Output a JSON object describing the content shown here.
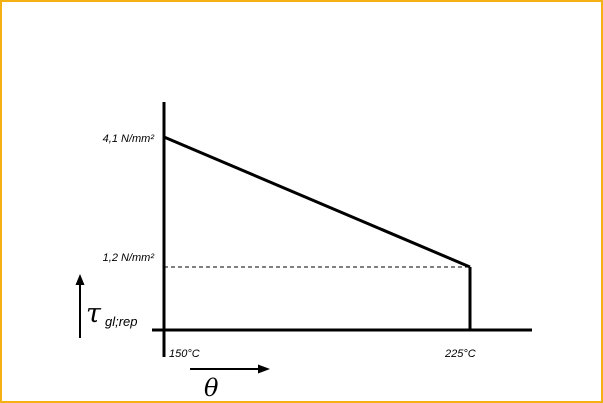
{
  "chart_data": {
    "type": "line",
    "x": [
      150,
      225
    ],
    "x_unit": "°C",
    "series": [
      {
        "values": [
          4.1,
          1.2
        ]
      }
    ],
    "y_unit": "N/mm²",
    "xlim": [
      150,
      225
    ],
    "ylim": [
      1.2,
      4.1
    ],
    "x_tick_labels": [
      "150°C",
      "225°C"
    ],
    "y_tick_labels": [
      "4,1 N/mm²",
      "1,2 N/mm²"
    ],
    "ylabel_symbol": "τ",
    "ylabel_subscript": "gl;rep",
    "xlabel_symbol": "θ",
    "reference_line": "dashed horizontal at 1.2 N/mm²",
    "grid": false
  },
  "colors": {
    "frame": "#f5b014",
    "ink": "#000000"
  }
}
